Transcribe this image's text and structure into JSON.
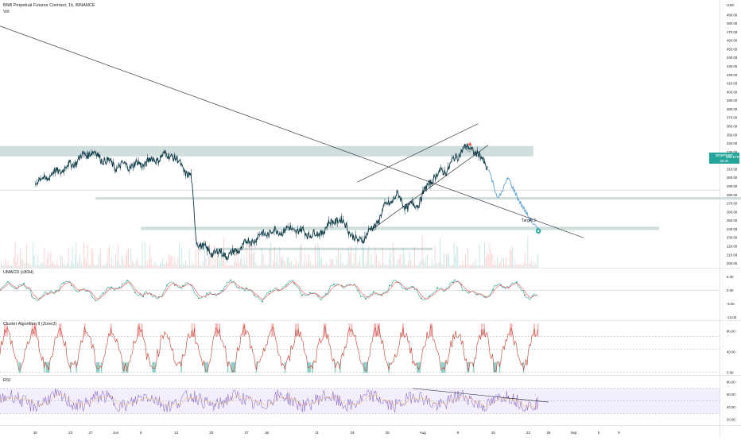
{
  "header": {
    "title": "BNB Perpetual Futures Contract, 1h, BINANCE",
    "vol_label": "Vol",
    "currency": "USD"
  },
  "price_tag": {
    "symbol": "BNBPERP",
    "price": "285.678",
    "countdown": "33:34"
  },
  "target_label": "Target 2",
  "colors": {
    "accent": "#26a69a",
    "candle_up": "#26a69a",
    "candle_down": "#ef5350",
    "projection": "#5ba3d9",
    "zone": "#b7cdcd",
    "rsi_line": "#7e57c2",
    "rsi_band": "#f3eefb"
  },
  "chart_data": [
    {
      "type": "line",
      "title": "BNB Perpetual Futures Contract, 1h, BINANCE",
      "ylim": [
        195,
        500
      ],
      "yticks": [
        200,
        210,
        220,
        230,
        240,
        250,
        260,
        270,
        280,
        290,
        300,
        310,
        320,
        330,
        340,
        350,
        360,
        370,
        380,
        390,
        400,
        410,
        420,
        430,
        440,
        450,
        460,
        470,
        480,
        490
      ],
      "xticks": [
        "16",
        "23",
        "27",
        "Jun",
        "6",
        "13",
        "20",
        "27",
        "Jul",
        "11",
        "18",
        "25",
        "Aug",
        "8",
        "15",
        "22",
        "26",
        "Sep",
        "5",
        "9"
      ],
      "series": [
        {
          "x": [
            16,
            23,
            27,
            32,
            37,
            43,
            47,
            48,
            50,
            52,
            55,
            58,
            62,
            67,
            72,
            76,
            78,
            80,
            83,
            86,
            88,
            90,
            92,
            95,
            98,
            101,
            103,
            106
          ],
          "values": [
            294,
            315,
            331,
            313,
            316,
            328,
            300,
            228,
            215,
            213,
            210,
            224,
            236,
            240,
            233,
            253,
            243,
            224,
            240,
            270,
            279,
            265,
            270,
            300,
            311,
            334,
            334,
            312
          ]
        }
      ],
      "projection": {
        "x": [
          106,
          108,
          110,
          112,
          114,
          116
        ],
        "values": [
          312,
          275,
          300,
          275,
          255,
          238
        ]
      },
      "current_price": 285.678,
      "zones": [
        {
          "from": 325,
          "to": 337
        },
        {
          "from": 239,
          "to": 243
        }
      ],
      "levels": [
        276,
        217
      ],
      "target": {
        "x": 116,
        "value": 238,
        "label": "Target 2"
      }
    },
    {
      "type": "line",
      "title": "UMACD (c80H)",
      "yticks": [
        5.0,
        0.0,
        -5.0,
        -10.0
      ],
      "ylim": [
        -11,
        8
      ]
    },
    {
      "type": "line",
      "title": "Cluster Algorithm II (Zone3)",
      "yticks": [
        80.0,
        40.0,
        0.0
      ],
      "ylim": [
        -5,
        100
      ]
    },
    {
      "type": "line",
      "title": "RSI",
      "yticks": [
        80.0,
        60.0,
        40.0,
        20.0
      ],
      "ylim": [
        10,
        90
      ],
      "band": [
        30,
        70
      ]
    }
  ]
}
